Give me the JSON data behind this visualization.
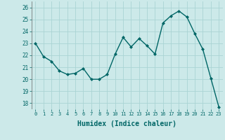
{
  "x": [
    0,
    1,
    2,
    3,
    4,
    5,
    6,
    7,
    8,
    9,
    10,
    11,
    12,
    13,
    14,
    15,
    16,
    17,
    18,
    19,
    20,
    21,
    22,
    23
  ],
  "y": [
    23.0,
    21.9,
    21.5,
    20.7,
    20.4,
    20.5,
    20.9,
    20.0,
    20.0,
    20.4,
    22.1,
    23.5,
    22.7,
    23.4,
    22.8,
    22.1,
    24.7,
    25.3,
    25.7,
    25.2,
    23.8,
    22.5,
    20.1,
    17.7
  ],
  "xlabel": "Humidex (Indice chaleur)",
  "ylabel": "",
  "ylim": [
    17.5,
    26.5
  ],
  "xlim": [
    -0.5,
    23.5
  ],
  "yticks": [
    18,
    19,
    20,
    21,
    22,
    23,
    24,
    25,
    26
  ],
  "xticks": [
    0,
    1,
    2,
    3,
    4,
    5,
    6,
    7,
    8,
    9,
    10,
    11,
    12,
    13,
    14,
    15,
    16,
    17,
    18,
    19,
    20,
    21,
    22,
    23
  ],
  "line_color": "#006666",
  "marker_color": "#006666",
  "bg_color": "#cce9e9",
  "grid_color": "#aad4d4",
  "tick_color": "#006666",
  "label_color": "#006666"
}
